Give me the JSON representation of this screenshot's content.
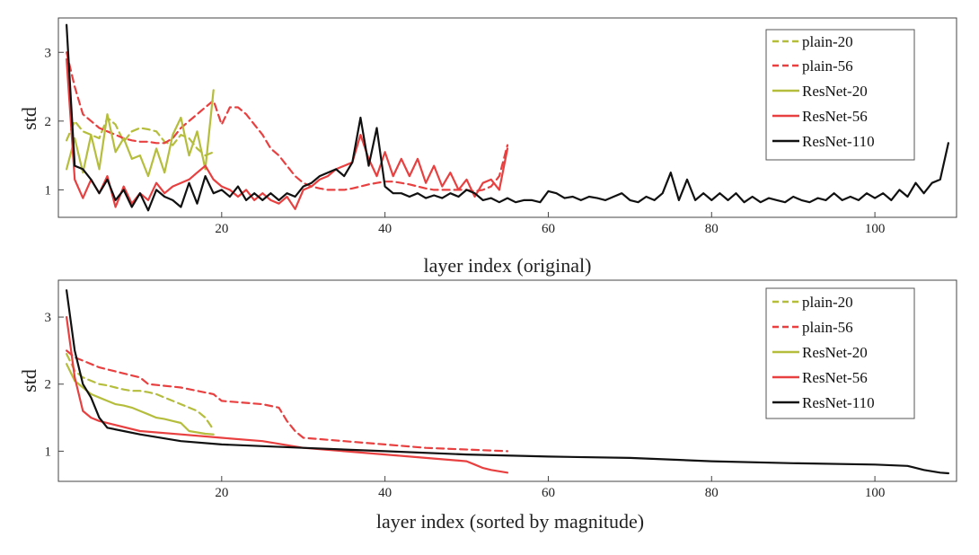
{
  "chart_data": [
    {
      "type": "line",
      "xlabel": "layer index (original)",
      "ylabel": "std",
      "xlim": [
        0,
        110
      ],
      "ylim": [
        0.6,
        3.5
      ],
      "xticks": [
        "20",
        "40",
        "60",
        "80",
        "100"
      ],
      "yticks": [
        "1",
        "2",
        "3"
      ],
      "grid": false,
      "legend": "top-right",
      "series": [
        {
          "name": "plain-20",
          "color": "#b5bd3c",
          "dash": true,
          "x": [
            1,
            2,
            3,
            4,
            5,
            6,
            7,
            8,
            9,
            10,
            11,
            12,
            13,
            14,
            15,
            16,
            17,
            18,
            19
          ],
          "y": [
            1.72,
            2.0,
            1.85,
            1.8,
            1.75,
            2.05,
            1.95,
            1.7,
            1.85,
            1.9,
            1.88,
            1.85,
            1.7,
            1.65,
            1.8,
            1.75,
            1.6,
            1.5,
            1.55
          ]
        },
        {
          "name": "plain-56",
          "color": "#e84040",
          "dash": true,
          "x": [
            1,
            2,
            3,
            4,
            5,
            6,
            7,
            8,
            9,
            10,
            11,
            12,
            13,
            14,
            15,
            16,
            17,
            18,
            19,
            20,
            21,
            22,
            23,
            24,
            25,
            26,
            27,
            28,
            29,
            30,
            31,
            32,
            33,
            34,
            35,
            36,
            37,
            38,
            39,
            40,
            41,
            42,
            43,
            44,
            45,
            46,
            47,
            48,
            49,
            50,
            51,
            52,
            53,
            54,
            55
          ],
          "y": [
            3.0,
            2.5,
            2.1,
            2.0,
            1.9,
            1.85,
            1.8,
            1.75,
            1.72,
            1.7,
            1.7,
            1.68,
            1.68,
            1.75,
            1.9,
            2.0,
            2.1,
            2.2,
            2.3,
            1.95,
            2.2,
            2.2,
            2.1,
            1.95,
            1.8,
            1.6,
            1.5,
            1.35,
            1.2,
            1.1,
            1.05,
            1.02,
            1.0,
            1.0,
            1.0,
            1.02,
            1.05,
            1.08,
            1.1,
            1.12,
            1.12,
            1.1,
            1.08,
            1.05,
            1.02,
            1.0,
            1.0,
            1.0,
            1.0,
            1.0,
            0.98,
            1.0,
            1.05,
            1.2,
            1.65
          ]
        },
        {
          "name": "ResNet-20",
          "color": "#b5bd3c",
          "dash": false,
          "x": [
            1,
            2,
            3,
            4,
            5,
            6,
            7,
            8,
            9,
            10,
            11,
            12,
            13,
            14,
            15,
            16,
            17,
            18,
            19
          ],
          "y": [
            1.3,
            1.75,
            1.25,
            1.8,
            1.3,
            2.1,
            1.55,
            1.75,
            1.45,
            1.5,
            1.2,
            1.6,
            1.25,
            1.8,
            2.05,
            1.5,
            1.85,
            1.3,
            2.45
          ]
        },
        {
          "name": "ResNet-56",
          "color": "#e84040",
          "dash": false,
          "x": [
            1,
            2,
            3,
            4,
            5,
            6,
            7,
            8,
            9,
            10,
            11,
            12,
            13,
            14,
            15,
            16,
            17,
            18,
            19,
            20,
            21,
            22,
            23,
            24,
            25,
            26,
            27,
            28,
            29,
            30,
            31,
            32,
            33,
            34,
            35,
            36,
            37,
            38,
            39,
            40,
            41,
            42,
            43,
            44,
            45,
            46,
            47,
            48,
            49,
            50,
            51,
            52,
            53,
            54,
            55
          ],
          "y": [
            2.9,
            1.15,
            0.88,
            1.15,
            0.95,
            1.2,
            0.75,
            1.05,
            0.8,
            0.95,
            0.85,
            1.1,
            0.95,
            1.05,
            1.1,
            1.15,
            1.25,
            1.35,
            1.15,
            1.05,
            1.0,
            0.9,
            1.0,
            0.85,
            0.95,
            0.85,
            0.8,
            0.9,
            0.72,
            1.0,
            1.05,
            1.15,
            1.2,
            1.3,
            1.35,
            1.4,
            1.8,
            1.45,
            1.2,
            1.55,
            1.2,
            1.45,
            1.2,
            1.45,
            1.1,
            1.35,
            1.05,
            1.25,
            1.0,
            1.15,
            0.9,
            1.1,
            1.15,
            1.0,
            1.6
          ]
        },
        {
          "name": "ResNet-110",
          "color": "#111111",
          "dash": false,
          "x": [
            1,
            2,
            3,
            4,
            5,
            6,
            7,
            8,
            9,
            10,
            11,
            12,
            13,
            14,
            15,
            16,
            17,
            18,
            19,
            20,
            21,
            22,
            23,
            24,
            25,
            26,
            27,
            28,
            29,
            30,
            31,
            32,
            33,
            34,
            35,
            36,
            37,
            38,
            39,
            40,
            41,
            42,
            43,
            44,
            45,
            46,
            47,
            48,
            49,
            50,
            51,
            52,
            53,
            54,
            55,
            56,
            57,
            58,
            59,
            60,
            61,
            62,
            63,
            64,
            65,
            66,
            67,
            68,
            69,
            70,
            71,
            72,
            73,
            74,
            75,
            76,
            77,
            78,
            79,
            80,
            81,
            82,
            83,
            84,
            85,
            86,
            87,
            88,
            89,
            90,
            91,
            92,
            93,
            94,
            95,
            96,
            97,
            98,
            99,
            100,
            101,
            102,
            103,
            104,
            105,
            106,
            107,
            108,
            109
          ],
          "y": [
            3.4,
            1.35,
            1.3,
            1.15,
            0.95,
            1.15,
            0.85,
            1.0,
            0.75,
            0.95,
            0.7,
            1.0,
            0.9,
            0.85,
            0.75,
            1.1,
            0.8,
            1.2,
            0.95,
            1.0,
            0.9,
            1.05,
            0.85,
            0.95,
            0.85,
            0.95,
            0.85,
            0.95,
            0.9,
            1.05,
            1.1,
            1.2,
            1.25,
            1.3,
            1.2,
            1.4,
            2.05,
            1.35,
            1.9,
            1.05,
            0.95,
            0.95,
            0.9,
            0.95,
            0.88,
            0.92,
            0.88,
            0.95,
            0.9,
            1.0,
            0.95,
            0.85,
            0.88,
            0.82,
            0.88,
            0.82,
            0.85,
            0.85,
            0.82,
            0.98,
            0.95,
            0.88,
            0.9,
            0.85,
            0.9,
            0.88,
            0.85,
            0.9,
            0.95,
            0.85,
            0.82,
            0.9,
            0.85,
            0.95,
            1.25,
            0.85,
            1.15,
            0.85,
            0.95,
            0.85,
            0.95,
            0.85,
            0.95,
            0.82,
            0.9,
            0.82,
            0.88,
            0.85,
            0.82,
            0.9,
            0.85,
            0.82,
            0.88,
            0.85,
            0.95,
            0.85,
            0.9,
            0.85,
            0.95,
            0.88,
            0.95,
            0.85,
            1.0,
            0.9,
            1.1,
            0.95,
            1.1,
            1.15,
            1.68
          ]
        }
      ]
    },
    {
      "type": "line",
      "xlabel": "layer index (sorted by magnitude)",
      "ylabel": "std",
      "xlim": [
        0,
        110
      ],
      "ylim": [
        0.55,
        3.55
      ],
      "xticks": [
        "20",
        "40",
        "60",
        "80",
        "100"
      ],
      "yticks": [
        "1",
        "2",
        "3"
      ],
      "grid": false,
      "legend": "top-right",
      "series": [
        {
          "name": "plain-20",
          "color": "#b5bd3c",
          "dash": true,
          "x": [
            1,
            2,
            3,
            4,
            5,
            6,
            7,
            8,
            9,
            10,
            11,
            12,
            13,
            14,
            15,
            16,
            17,
            18,
            19
          ],
          "y": [
            2.45,
            2.2,
            2.1,
            2.05,
            2.0,
            1.98,
            1.95,
            1.92,
            1.9,
            1.9,
            1.88,
            1.85,
            1.8,
            1.75,
            1.7,
            1.65,
            1.6,
            1.5,
            1.32
          ]
        },
        {
          "name": "plain-56",
          "color": "#e84040",
          "dash": true,
          "x": [
            1,
            2,
            5,
            10,
            11,
            15,
            19,
            20,
            25,
            27,
            28,
            29,
            30,
            35,
            40,
            45,
            55
          ],
          "y": [
            2.5,
            2.4,
            2.25,
            2.1,
            2.0,
            1.95,
            1.85,
            1.75,
            1.7,
            1.65,
            1.45,
            1.3,
            1.2,
            1.15,
            1.1,
            1.05,
            1.0
          ]
        },
        {
          "name": "ResNet-20",
          "color": "#b5bd3c",
          "dash": false,
          "x": [
            1,
            2,
            3,
            4,
            5,
            6,
            7,
            8,
            9,
            10,
            11,
            12,
            13,
            14,
            15,
            16,
            17,
            18,
            19
          ],
          "y": [
            2.3,
            2.05,
            1.95,
            1.85,
            1.8,
            1.75,
            1.7,
            1.68,
            1.65,
            1.6,
            1.55,
            1.5,
            1.48,
            1.45,
            1.42,
            1.3,
            1.28,
            1.26,
            1.25
          ]
        },
        {
          "name": "ResNet-56",
          "color": "#e84040",
          "dash": false,
          "x": [
            1,
            2,
            3,
            4,
            5,
            10,
            15,
            20,
            25,
            30,
            35,
            40,
            45,
            50,
            51,
            52,
            53,
            54,
            55
          ],
          "y": [
            3.0,
            2.1,
            1.6,
            1.5,
            1.45,
            1.3,
            1.25,
            1.2,
            1.15,
            1.05,
            1.0,
            0.95,
            0.9,
            0.85,
            0.8,
            0.75,
            0.72,
            0.7,
            0.68
          ]
        },
        {
          "name": "ResNet-110",
          "color": "#111111",
          "dash": false,
          "x": [
            1,
            2,
            3,
            4,
            5,
            6,
            8,
            10,
            15,
            20,
            30,
            40,
            50,
            60,
            70,
            80,
            90,
            100,
            104,
            106,
            108,
            109
          ],
          "y": [
            3.4,
            2.5,
            2.0,
            1.8,
            1.5,
            1.35,
            1.3,
            1.25,
            1.15,
            1.1,
            1.05,
            1.0,
            0.95,
            0.92,
            0.9,
            0.85,
            0.82,
            0.8,
            0.78,
            0.72,
            0.68,
            0.67
          ]
        }
      ]
    }
  ]
}
